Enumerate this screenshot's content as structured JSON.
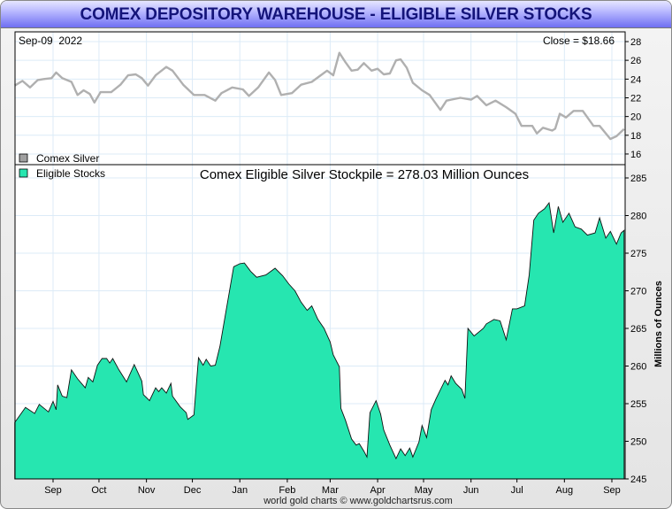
{
  "title": "COMEX DEPOSITORY WAREHOUSE - ELIGIBLE SILVER STOCKS",
  "footer": "world gold charts © www.goldchartsrus.com",
  "colors": {
    "stocks_fill": "#26e6b0",
    "price_line": "#b0b0b0",
    "grid": "#dcebf7",
    "title_text": "#14147a"
  },
  "chart_data": [
    {
      "type": "line",
      "panel": "top",
      "date_label": "Sep-09  2022",
      "close_label": "Close = $18.66",
      "legend": [
        {
          "name": "Comex Silver",
          "color": "#a0a0a0"
        }
      ],
      "ylim": [
        15,
        29
      ],
      "yticks": [
        16,
        18,
        20,
        22,
        24,
        26,
        28
      ],
      "grid": true,
      "series": [
        {
          "name": "Comex Silver",
          "points": [
            [
              "2021-08-07",
              23.3
            ],
            [
              "2021-08-12",
              23.8
            ],
            [
              "2021-08-17",
              23.1
            ],
            [
              "2021-08-22",
              23.9
            ],
            [
              "2021-08-26",
              24.0
            ],
            [
              "2021-08-31",
              24.1
            ],
            [
              "2021-09-03",
              24.7
            ],
            [
              "2021-09-07",
              24.1
            ],
            [
              "2021-09-13",
              23.7
            ],
            [
              "2021-09-17",
              22.3
            ],
            [
              "2021-09-21",
              22.8
            ],
            [
              "2021-09-25",
              22.4
            ],
            [
              "2021-09-28",
              21.5
            ],
            [
              "2021-10-02",
              22.6
            ],
            [
              "2021-10-09",
              22.6
            ],
            [
              "2021-10-15",
              23.4
            ],
            [
              "2021-10-20",
              24.4
            ],
            [
              "2021-10-25",
              24.5
            ],
            [
              "2021-10-29",
              24.1
            ],
            [
              "2021-11-02",
              23.3
            ],
            [
              "2021-11-07",
              24.4
            ],
            [
              "2021-11-14",
              25.3
            ],
            [
              "2021-11-18",
              24.9
            ],
            [
              "2021-11-25",
              23.4
            ],
            [
              "2021-12-02",
              22.3
            ],
            [
              "2021-12-09",
              22.3
            ],
            [
              "2021-12-16",
              21.7
            ],
            [
              "2021-12-20",
              22.5
            ],
            [
              "2021-12-27",
              23.1
            ],
            [
              "2022-01-03",
              22.9
            ],
            [
              "2022-01-07",
              22.2
            ],
            [
              "2022-01-13",
              23.1
            ],
            [
              "2022-01-20",
              24.7
            ],
            [
              "2022-01-24",
              23.9
            ],
            [
              "2022-01-28",
              22.3
            ],
            [
              "2022-02-04",
              22.5
            ],
            [
              "2022-02-10",
              23.4
            ],
            [
              "2022-02-17",
              23.7
            ],
            [
              "2022-02-22",
              24.3
            ],
            [
              "2022-02-27",
              24.9
            ],
            [
              "2022-03-03",
              24.4
            ],
            [
              "2022-03-07",
              26.8
            ],
            [
              "2022-03-11",
              25.8
            ],
            [
              "2022-03-15",
              24.9
            ],
            [
              "2022-03-19",
              25.0
            ],
            [
              "2022-03-23",
              25.7
            ],
            [
              "2022-03-28",
              24.9
            ],
            [
              "2022-04-01",
              25.1
            ],
            [
              "2022-04-05",
              24.5
            ],
            [
              "2022-04-09",
              24.6
            ],
            [
              "2022-04-13",
              26.0
            ],
            [
              "2022-04-16",
              26.1
            ],
            [
              "2022-04-20",
              25.2
            ],
            [
              "2022-04-24",
              23.6
            ],
            [
              "2022-04-30",
              22.8
            ],
            [
              "2022-05-05",
              22.3
            ],
            [
              "2022-05-12",
              20.7
            ],
            [
              "2022-05-16",
              21.7
            ],
            [
              "2022-05-25",
              22.0
            ],
            [
              "2022-06-01",
              21.8
            ],
            [
              "2022-06-05",
              22.2
            ],
            [
              "2022-06-11",
              21.2
            ],
            [
              "2022-06-17",
              21.7
            ],
            [
              "2022-06-24",
              21.0
            ],
            [
              "2022-06-30",
              20.3
            ],
            [
              "2022-07-04",
              19.0
            ],
            [
              "2022-07-11",
              19.0
            ],
            [
              "2022-07-14",
              18.2
            ],
            [
              "2022-07-18",
              18.8
            ],
            [
              "2022-07-24",
              18.5
            ],
            [
              "2022-07-26",
              18.7
            ],
            [
              "2022-07-29",
              20.3
            ],
            [
              "2022-08-02",
              19.9
            ],
            [
              "2022-08-07",
              20.6
            ],
            [
              "2022-08-13",
              20.6
            ],
            [
              "2022-08-20",
              19.0
            ],
            [
              "2022-08-24",
              19.0
            ],
            [
              "2022-08-31",
              17.6
            ],
            [
              "2022-09-04",
              17.9
            ],
            [
              "2022-09-09",
              18.66
            ]
          ]
        }
      ]
    },
    {
      "type": "area",
      "panel": "bottom",
      "title": "Comex Eligible Silver Stockpile = 278.03 Million Ounces",
      "ylabel": "Millions of Ounces",
      "legend": [
        {
          "name": "Eligible Stocks",
          "color": "#26e6b0"
        }
      ],
      "ylim": [
        245,
        287
      ],
      "yticks": [
        245,
        250,
        255,
        260,
        265,
        270,
        275,
        280,
        285
      ],
      "xticks": [
        {
          "label": "Sep",
          "date": "2021-09-01"
        },
        {
          "label": "Oct",
          "date": "2021-10-01"
        },
        {
          "label": "Nov",
          "date": "2021-11-01"
        },
        {
          "label": "Dec",
          "date": "2021-12-01"
        },
        {
          "label": "Jan",
          "date": "2022-01-01"
        },
        {
          "label": "Feb",
          "date": "2022-02-01"
        },
        {
          "label": "Mar",
          "date": "2022-03-01"
        },
        {
          "label": "Apr",
          "date": "2022-04-01"
        },
        {
          "label": "May",
          "date": "2022-05-01"
        },
        {
          "label": "Jun",
          "date": "2022-06-01"
        },
        {
          "label": "Jul",
          "date": "2022-07-01"
        },
        {
          "label": "Aug",
          "date": "2022-08-01"
        },
        {
          "label": "Sep",
          "date": "2022-09-01"
        }
      ],
      "grid": true,
      "series": [
        {
          "name": "Eligible Stocks",
          "points": [
            [
              "2021-08-07",
              252.5
            ],
            [
              "2021-08-14",
              254.5
            ],
            [
              "2021-08-20",
              253.7
            ],
            [
              "2021-08-23",
              254.9
            ],
            [
              "2021-08-29",
              253.9
            ],
            [
              "2021-09-01",
              255.3
            ],
            [
              "2021-09-03",
              254.2
            ],
            [
              "2021-09-04",
              257.5
            ],
            [
              "2021-09-07",
              256.0
            ],
            [
              "2021-09-10",
              255.8
            ],
            [
              "2021-09-13",
              259.5
            ],
            [
              "2021-09-17",
              258.3
            ],
            [
              "2021-09-22",
              257.1
            ],
            [
              "2021-09-24",
              258.5
            ],
            [
              "2021-09-27",
              257.9
            ],
            [
              "2021-09-30",
              260.1
            ],
            [
              "2021-10-03",
              261.0
            ],
            [
              "2021-10-06",
              261.0
            ],
            [
              "2021-10-08",
              260.4
            ],
            [
              "2021-10-10",
              261.0
            ],
            [
              "2021-10-14",
              259.5
            ],
            [
              "2021-10-19",
              257.9
            ],
            [
              "2021-10-24",
              260.2
            ],
            [
              "2021-10-29",
              258.0
            ],
            [
              "2021-10-30",
              256.2
            ],
            [
              "2021-11-03",
              255.4
            ],
            [
              "2021-11-07",
              257.1
            ],
            [
              "2021-11-09",
              256.6
            ],
            [
              "2021-11-11",
              257.1
            ],
            [
              "2021-11-14",
              256.4
            ],
            [
              "2021-11-17",
              257.7
            ],
            [
              "2021-11-18",
              256.0
            ],
            [
              "2021-11-23",
              254.6
            ],
            [
              "2021-11-27",
              253.8
            ],
            [
              "2021-11-28",
              252.9
            ],
            [
              "2021-12-02",
              253.5
            ],
            [
              "2021-12-05",
              261.1
            ],
            [
              "2021-12-08",
              260.1
            ],
            [
              "2021-12-10",
              260.9
            ],
            [
              "2021-12-13",
              260.0
            ],
            [
              "2021-12-16",
              260.1
            ],
            [
              "2021-12-19",
              262.6
            ],
            [
              "2021-12-28",
              273.2
            ],
            [
              "2022-01-01",
              273.6
            ],
            [
              "2022-01-04",
              273.7
            ],
            [
              "2022-01-08",
              272.6
            ],
            [
              "2022-01-12",
              271.8
            ],
            [
              "2022-01-18",
              272.1
            ],
            [
              "2022-01-24",
              273.0
            ],
            [
              "2022-01-29",
              272.0
            ],
            [
              "2022-02-02",
              270.9
            ],
            [
              "2022-02-06",
              270.0
            ],
            [
              "2022-02-10",
              268.5
            ],
            [
              "2022-02-14",
              267.4
            ],
            [
              "2022-02-17",
              268.0
            ],
            [
              "2022-02-21",
              266.2
            ],
            [
              "2022-02-25",
              265.0
            ],
            [
              "2022-03-01",
              263.2
            ],
            [
              "2022-03-03",
              261.5
            ],
            [
              "2022-03-07",
              259.9
            ],
            [
              "2022-03-08",
              254.4
            ],
            [
              "2022-03-11",
              252.8
            ],
            [
              "2022-03-15",
              250.3
            ],
            [
              "2022-03-18",
              249.5
            ],
            [
              "2022-03-20",
              249.7
            ],
            [
              "2022-03-23",
              248.7
            ],
            [
              "2022-03-25",
              247.9
            ],
            [
              "2022-03-27",
              253.8
            ],
            [
              "2022-03-31",
              255.4
            ],
            [
              "2022-04-03",
              253.6
            ],
            [
              "2022-04-05",
              251.5
            ],
            [
              "2022-04-09",
              249.5
            ],
            [
              "2022-04-13",
              247.7
            ],
            [
              "2022-04-16",
              249.0
            ],
            [
              "2022-04-19",
              248.1
            ],
            [
              "2022-04-22",
              249.1
            ],
            [
              "2022-04-24",
              247.9
            ],
            [
              "2022-04-28",
              249.9
            ],
            [
              "2022-04-30",
              252.1
            ],
            [
              "2022-05-03",
              250.5
            ],
            [
              "2022-05-06",
              254.2
            ],
            [
              "2022-05-09",
              255.6
            ],
            [
              "2022-05-15",
              258.1
            ],
            [
              "2022-05-17",
              257.5
            ],
            [
              "2022-05-19",
              258.7
            ],
            [
              "2022-05-22",
              257.7
            ],
            [
              "2022-05-26",
              256.9
            ],
            [
              "2022-05-28",
              255.7
            ],
            [
              "2022-05-30",
              265.0
            ],
            [
              "2022-06-03",
              264.0
            ],
            [
              "2022-06-09",
              265.0
            ],
            [
              "2022-06-11",
              265.6
            ],
            [
              "2022-06-16",
              266.2
            ],
            [
              "2022-06-20",
              266.0
            ],
            [
              "2022-06-24",
              263.5
            ],
            [
              "2022-06-28",
              267.6
            ],
            [
              "2022-07-01",
              267.6
            ],
            [
              "2022-07-06",
              268.0
            ],
            [
              "2022-07-09",
              272.1
            ],
            [
              "2022-07-12",
              279.4
            ],
            [
              "2022-07-15",
              280.3
            ],
            [
              "2022-07-19",
              280.9
            ],
            [
              "2022-07-22",
              281.7
            ],
            [
              "2022-07-25",
              277.7
            ],
            [
              "2022-07-28",
              281.2
            ],
            [
              "2022-07-31",
              279.1
            ],
            [
              "2022-08-04",
              280.3
            ],
            [
              "2022-08-08",
              278.5
            ],
            [
              "2022-08-12",
              278.2
            ],
            [
              "2022-08-16",
              277.4
            ],
            [
              "2022-08-21",
              277.7
            ],
            [
              "2022-08-24",
              279.7
            ],
            [
              "2022-08-28",
              277.0
            ],
            [
              "2022-08-31",
              277.9
            ],
            [
              "2022-09-04",
              276.2
            ],
            [
              "2022-09-07",
              277.7
            ],
            [
              "2022-09-09",
              278.03
            ]
          ]
        }
      ]
    }
  ]
}
